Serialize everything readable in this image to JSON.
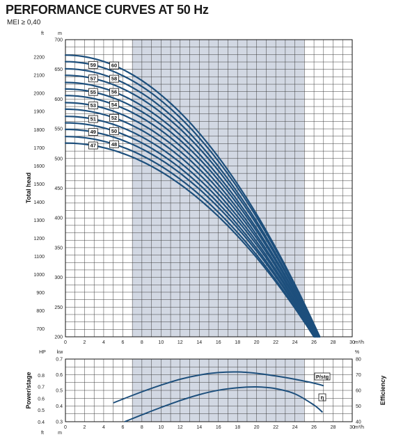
{
  "header": {
    "title": "PERFORMANCE CURVES AT 50 Hz",
    "subtitle": "MEI ≥ 0,40"
  },
  "colors": {
    "curve": "#1d4f7c",
    "shade": "#d2d8e3",
    "grid": "#3a3a3a"
  },
  "chart_data": [
    {
      "type": "line",
      "ylabel": "Total head",
      "units": {
        "x": "m³/h",
        "y_left": "ft",
        "y_right": "m"
      },
      "xlim": [
        0,
        30
      ],
      "ylim_m": [
        200,
        700
      ],
      "x_ticks": [
        "0",
        "2",
        "4",
        "6",
        "8",
        "10",
        "12",
        "14",
        "16",
        "18",
        "20",
        "22",
        "24",
        "26",
        "28",
        "30"
      ],
      "y_ticks_m": [
        "200",
        "250",
        "300",
        "350",
        "400",
        "450",
        "500",
        "550",
        "600",
        "650",
        "700"
      ],
      "y_ticks_ft": [
        "700",
        "800",
        "900",
        "1000",
        "1100",
        "1200",
        "1300",
        "1400",
        "1500",
        "1600",
        "1700",
        "1800",
        "1900",
        "2000",
        "2100",
        "2200"
      ],
      "shaded_range_x": [
        7,
        25
      ],
      "grid": true,
      "series": [
        {
          "name": "47",
          "shutoff_m": 526,
          "end_q": 26.0
        },
        {
          "name": "48",
          "shutoff_m": 537,
          "end_q": 26.0
        },
        {
          "name": "49",
          "shutoff_m": 549,
          "end_q": 26.1
        },
        {
          "name": "50",
          "shutoff_m": 560,
          "end_q": 26.1
        },
        {
          "name": "51",
          "shutoff_m": 571,
          "end_q": 26.2
        },
        {
          "name": "52",
          "shutoff_m": 583,
          "end_q": 26.2
        },
        {
          "name": "53",
          "shutoff_m": 594,
          "end_q": 26.3
        },
        {
          "name": "54",
          "shutoff_m": 606,
          "end_q": 26.3
        },
        {
          "name": "55",
          "shutoff_m": 617,
          "end_q": 26.4
        },
        {
          "name": "56",
          "shutoff_m": 628,
          "end_q": 26.4
        },
        {
          "name": "57",
          "shutoff_m": 640,
          "end_q": 26.5
        },
        {
          "name": "58",
          "shutoff_m": 651,
          "end_q": 26.5
        },
        {
          "name": "59",
          "shutoff_m": 663,
          "end_q": 26.6
        },
        {
          "name": "60",
          "shutoff_m": 674,
          "end_q": 26.6
        }
      ]
    },
    {
      "type": "line",
      "ylabel_left": "Power/stage",
      "ylabel_right": "Efficiency",
      "units": {
        "x": "m³/h",
        "y_left_top": "kw",
        "y_left_outer": "HP",
        "y_right": "%"
      },
      "xlim": [
        0,
        30
      ],
      "x_ticks": [
        "0",
        "2",
        "4",
        "6",
        "8",
        "10",
        "12",
        "14",
        "16",
        "18",
        "20",
        "22",
        "24",
        "26",
        "28",
        "30"
      ],
      "y_ticks_kw": [
        "0.3",
        "0.4",
        "0.5",
        "0.6",
        "0.7"
      ],
      "y_ticks_hp": [
        "0.4",
        "0.5",
        "0.6",
        "0.7",
        "0.8"
      ],
      "y_ticks_pct": [
        "40",
        "50",
        "60",
        "70",
        "80"
      ],
      "shaded_range_x": [
        7,
        25
      ],
      "series": [
        {
          "name": "P/stg",
          "x": [
            5,
            8,
            10,
            12,
            14,
            16,
            18,
            20,
            22,
            24,
            26,
            27
          ],
          "y_kw": [
            0.42,
            0.491,
            0.534,
            0.571,
            0.598,
            0.614,
            0.618,
            0.609,
            0.592,
            0.571,
            0.546,
            0.53
          ]
        },
        {
          "name": "η",
          "x": [
            6.2,
            8,
            10,
            12,
            14,
            16,
            18,
            20,
            22,
            24,
            26,
            26.9
          ],
          "y_pct": [
            40,
            44.4,
            49.1,
            53.5,
            57.3,
            60.1,
            61.7,
            62.2,
            61.1,
            57.8,
            50.6,
            46
          ]
        }
      ]
    }
  ]
}
